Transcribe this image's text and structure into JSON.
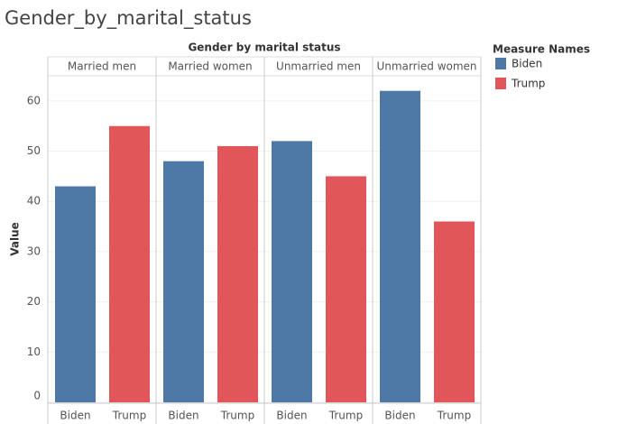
{
  "chart_data": {
    "type": "bar",
    "page_title": "Gender_by_marital_status",
    "title": "Gender by marital status",
    "categories": [
      "Married men",
      "Married women",
      "Unmarried men",
      "Unmarried women"
    ],
    "series": [
      {
        "name": "Biden",
        "color": "#4e79a7",
        "values": [
          43,
          48,
          52,
          62
        ]
      },
      {
        "name": "Trump",
        "color": "#e15759",
        "values": [
          55,
          51,
          45,
          36
        ]
      }
    ],
    "y_label": "Value",
    "legend_title": "Measure Names",
    "ylim": [
      0,
      65
    ],
    "yticks": [
      0,
      10,
      20,
      30,
      40,
      50,
      60
    ],
    "grid": true
  }
}
